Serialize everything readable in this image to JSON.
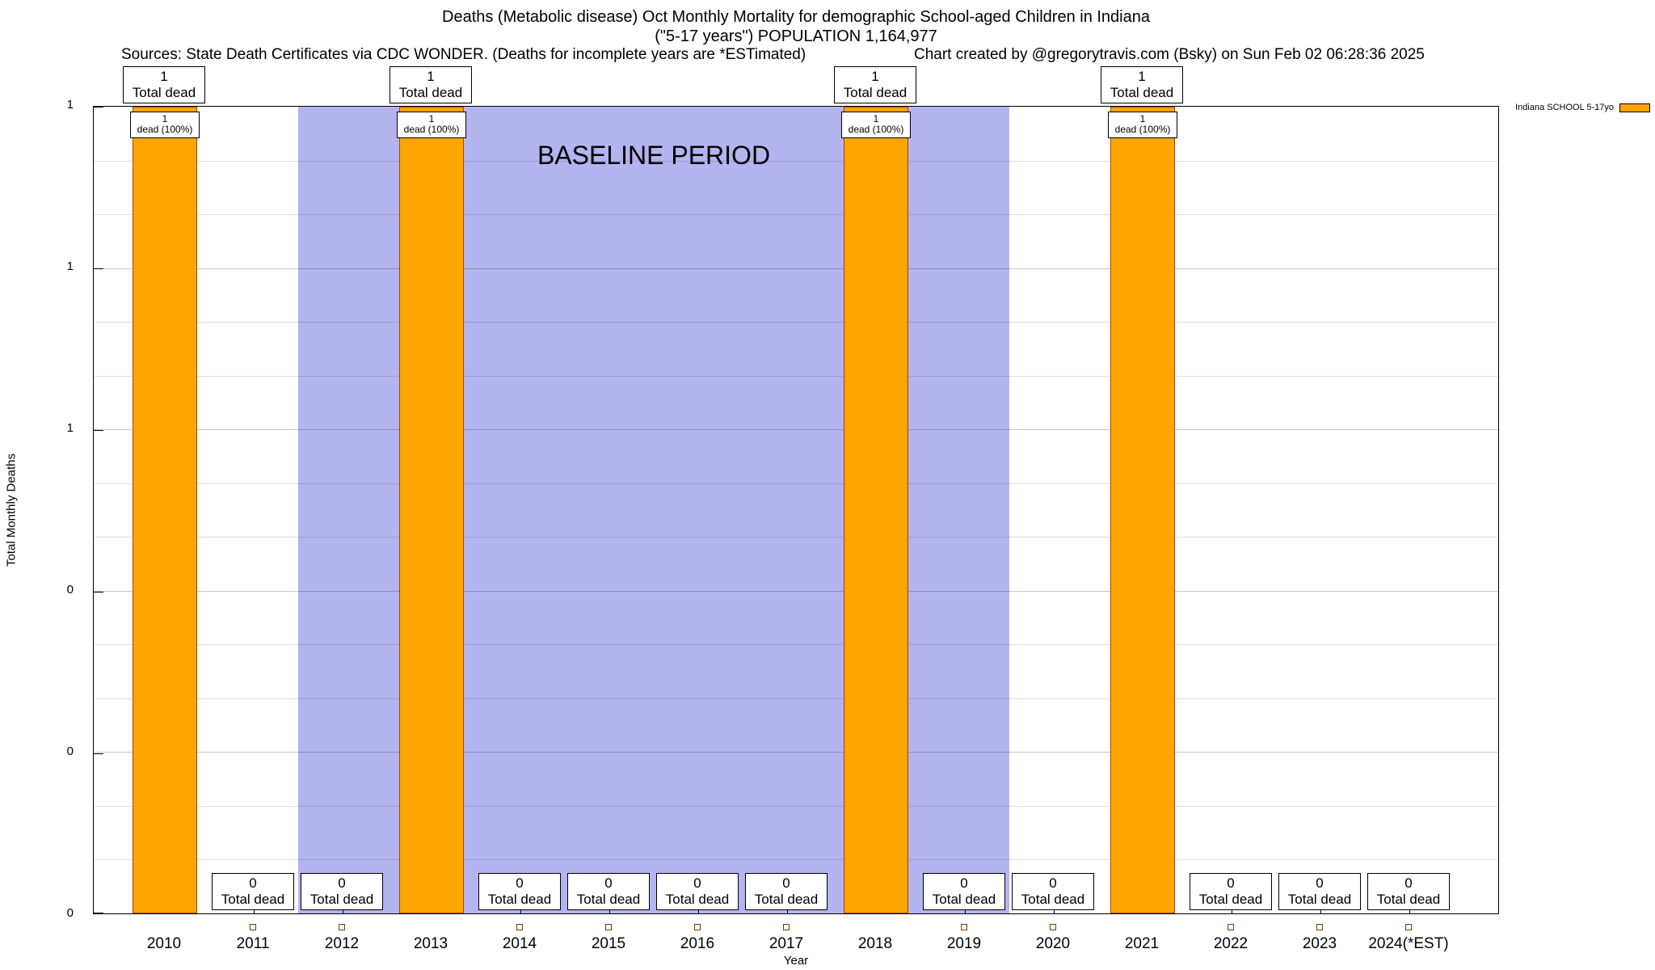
{
  "header": {
    "title_line1": "Deaths (Metabolic disease) Oct Monthly Mortality for demographic School-aged Children in Indiana",
    "title_line2": "(\"5-17 years\") POPULATION 1,164,977",
    "sources": "Sources: State Death Certificates via CDC WONDER. (Deaths for incomplete years are *ESTimated)",
    "credit": "Chart created by @gregorytravis.com (Bsky) on Sun Feb 02 06:28:36 2025"
  },
  "chart_data": {
    "type": "bar",
    "title": "Deaths (Metabolic disease) Oct Monthly Mortality for demographic School-aged Children in Indiana (\"5-17 years\") POPULATION 1,164,977",
    "xlabel": "Year",
    "ylabel": "Total Monthly Deaths",
    "ylim": [
      0,
      1
    ],
    "grid": true,
    "yticks": {
      "values": [
        1,
        0.8,
        0.6,
        0.4,
        0.2,
        0
      ],
      "labels": [
        "1",
        "1",
        "1",
        "0",
        "0",
        "0"
      ]
    },
    "categories": [
      "2010",
      "2011",
      "2012",
      "2013",
      "2014",
      "2015",
      "2016",
      "2017",
      "2018",
      "2019",
      "2020",
      "2021",
      "2022",
      "2023",
      "2024(*EST)"
    ],
    "values": [
      1,
      0,
      0,
      1,
      0,
      0,
      0,
      0,
      1,
      0,
      0,
      1,
      0,
      0,
      0
    ],
    "bar_color": "#ffa500",
    "bar_border": "#a34700",
    "baseline_region": {
      "label": "BASELINE PERIOD",
      "start_year": "2012",
      "end_year": "2019",
      "color": "#b4b4f0"
    },
    "legend": {
      "label": "Indiana SCHOOL 5-17yo",
      "swatch_color": "#ffa500",
      "position": "top-right"
    },
    "columns": [
      {
        "year": "2010",
        "value": 1,
        "top_box": [
          "1",
          "Total dead"
        ],
        "bar_label": [
          "1",
          "dead (100%)"
        ]
      },
      {
        "year": "2011",
        "value": 0,
        "zero_box": [
          "0",
          "Total dead"
        ]
      },
      {
        "year": "2012",
        "value": 0,
        "zero_box": [
          "0",
          "Total dead"
        ]
      },
      {
        "year": "2013",
        "value": 1,
        "top_box": [
          "1",
          "Total dead"
        ],
        "bar_label": [
          "1",
          "dead (100%)"
        ]
      },
      {
        "year": "2014",
        "value": 0,
        "zero_box": [
          "0",
          "Total dead"
        ]
      },
      {
        "year": "2015",
        "value": 0,
        "zero_box": [
          "0",
          "Total dead"
        ]
      },
      {
        "year": "2016",
        "value": 0,
        "zero_box": [
          "0",
          "Total dead"
        ]
      },
      {
        "year": "2017",
        "value": 0,
        "zero_box": [
          "0",
          "Total dead"
        ]
      },
      {
        "year": "2018",
        "value": 1,
        "top_box": [
          "1",
          "Total dead"
        ],
        "bar_label": [
          "1",
          "dead (100%)"
        ]
      },
      {
        "year": "2019",
        "value": 0,
        "zero_box": [
          "0",
          "Total dead"
        ]
      },
      {
        "year": "2020",
        "value": 0,
        "zero_box": [
          "0",
          "Total dead"
        ]
      },
      {
        "year": "2021",
        "value": 1,
        "top_box": [
          "1",
          "Total dead"
        ],
        "bar_label": [
          "1",
          "dead (100%)"
        ]
      },
      {
        "year": "2022",
        "value": 0,
        "zero_box": [
          "0",
          "Total dead"
        ]
      },
      {
        "year": "2023",
        "value": 0,
        "zero_box": [
          "0",
          "Total dead"
        ]
      },
      {
        "year": "2024(*EST)",
        "value": 0,
        "zero_box": [
          "0",
          "Total dead"
        ]
      }
    ]
  }
}
